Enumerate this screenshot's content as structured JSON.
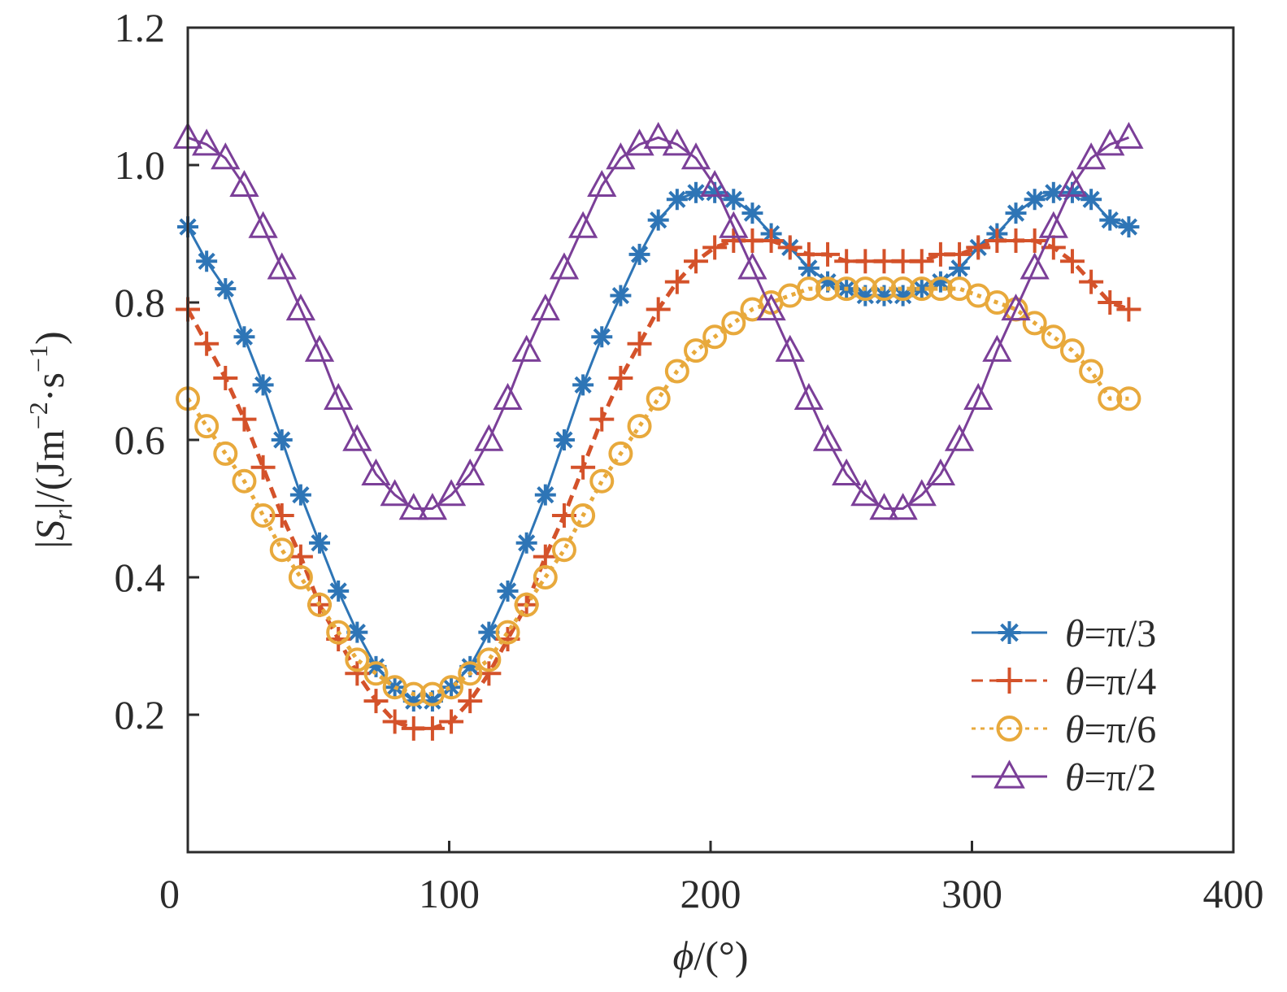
{
  "chart_data": {
    "type": "line",
    "xlabel": "ϕ/(°)",
    "ylabel": "|S_r|/(Jm⁻²·s⁻¹)",
    "ylabel_parts": {
      "open": "|",
      "S": "S",
      "sub": "r",
      "close": "|/(Jm",
      "sup1": "−2",
      "mid": "·s",
      "sup2": "−1",
      "end": ")"
    },
    "xlabel_parts": {
      "phi": "ϕ",
      "rest": "/(°)"
    },
    "xlim": [
      0,
      400
    ],
    "ylim": [
      0,
      1.2
    ],
    "xticks": [
      "0",
      "100",
      "200",
      "300",
      "400"
    ],
    "yticks": [
      "0.2",
      "0.4",
      "0.6",
      "0.8",
      "1.0",
      "1.2"
    ],
    "grid": false,
    "legend_position": "bottom-right",
    "x": [
      0,
      7.2,
      14.4,
      21.6,
      28.8,
      36,
      43.2,
      50.4,
      57.6,
      64.8,
      72,
      79.2,
      86.4,
      93.6,
      100.8,
      108,
      115.2,
      122.4,
      129.6,
      136.8,
      144,
      151.2,
      158.4,
      165.6,
      172.8,
      180,
      187.2,
      194.4,
      201.6,
      208.8,
      216,
      223.2,
      230.4,
      237.6,
      244.8,
      252,
      259.2,
      266.4,
      273.6,
      280.8,
      288,
      295.2,
      302.4,
      309.6,
      316.8,
      324,
      331.2,
      338.4,
      345.6,
      352.8,
      360
    ],
    "series": [
      {
        "name": "θ=π/3",
        "color": "#2e75b6",
        "marker": "asterisk",
        "line": "solid",
        "values": [
          0.91,
          0.86,
          0.82,
          0.75,
          0.68,
          0.6,
          0.52,
          0.45,
          0.38,
          0.32,
          0.27,
          0.24,
          0.22,
          0.22,
          0.24,
          0.27,
          0.32,
          0.38,
          0.45,
          0.52,
          0.6,
          0.68,
          0.75,
          0.81,
          0.87,
          0.92,
          0.95,
          0.96,
          0.96,
          0.95,
          0.93,
          0.9,
          0.88,
          0.85,
          0.83,
          0.82,
          0.81,
          0.81,
          0.81,
          0.82,
          0.83,
          0.85,
          0.88,
          0.9,
          0.93,
          0.95,
          0.96,
          0.96,
          0.95,
          0.92,
          0.91
        ]
      },
      {
        "name": "θ=π/4",
        "color": "#d4522a",
        "marker": "plus",
        "line": "dashed",
        "values": [
          0.79,
          0.74,
          0.69,
          0.63,
          0.56,
          0.49,
          0.43,
          0.36,
          0.31,
          0.26,
          0.22,
          0.19,
          0.18,
          0.18,
          0.19,
          0.22,
          0.26,
          0.31,
          0.36,
          0.43,
          0.49,
          0.56,
          0.63,
          0.69,
          0.74,
          0.79,
          0.83,
          0.86,
          0.88,
          0.89,
          0.89,
          0.89,
          0.88,
          0.87,
          0.87,
          0.86,
          0.86,
          0.86,
          0.86,
          0.86,
          0.87,
          0.87,
          0.88,
          0.89,
          0.89,
          0.89,
          0.88,
          0.86,
          0.83,
          0.8,
          0.79
        ]
      },
      {
        "name": "θ=π/6",
        "color": "#e8a93c",
        "marker": "circle",
        "line": "dotted",
        "values": [
          0.66,
          0.62,
          0.58,
          0.54,
          0.49,
          0.44,
          0.4,
          0.36,
          0.32,
          0.28,
          0.26,
          0.24,
          0.23,
          0.23,
          0.24,
          0.26,
          0.28,
          0.32,
          0.36,
          0.4,
          0.44,
          0.49,
          0.54,
          0.58,
          0.62,
          0.66,
          0.7,
          0.73,
          0.75,
          0.77,
          0.79,
          0.8,
          0.81,
          0.82,
          0.82,
          0.82,
          0.82,
          0.82,
          0.82,
          0.82,
          0.82,
          0.82,
          0.81,
          0.8,
          0.79,
          0.77,
          0.75,
          0.73,
          0.7,
          0.66,
          0.66
        ]
      },
      {
        "name": "θ=π/2",
        "color": "#7b3f98",
        "marker": "triangle",
        "line": "solid",
        "values": [
          1.04,
          1.03,
          1.01,
          0.97,
          0.91,
          0.85,
          0.79,
          0.73,
          0.66,
          0.6,
          0.55,
          0.52,
          0.5,
          0.5,
          0.52,
          0.55,
          0.6,
          0.66,
          0.73,
          0.79,
          0.85,
          0.91,
          0.97,
          1.01,
          1.03,
          1.04,
          1.03,
          1.01,
          0.97,
          0.91,
          0.85,
          0.79,
          0.73,
          0.66,
          0.6,
          0.55,
          0.52,
          0.5,
          0.5,
          0.52,
          0.55,
          0.6,
          0.66,
          0.73,
          0.79,
          0.85,
          0.91,
          0.97,
          1.01,
          1.03,
          1.04
        ]
      }
    ]
  }
}
